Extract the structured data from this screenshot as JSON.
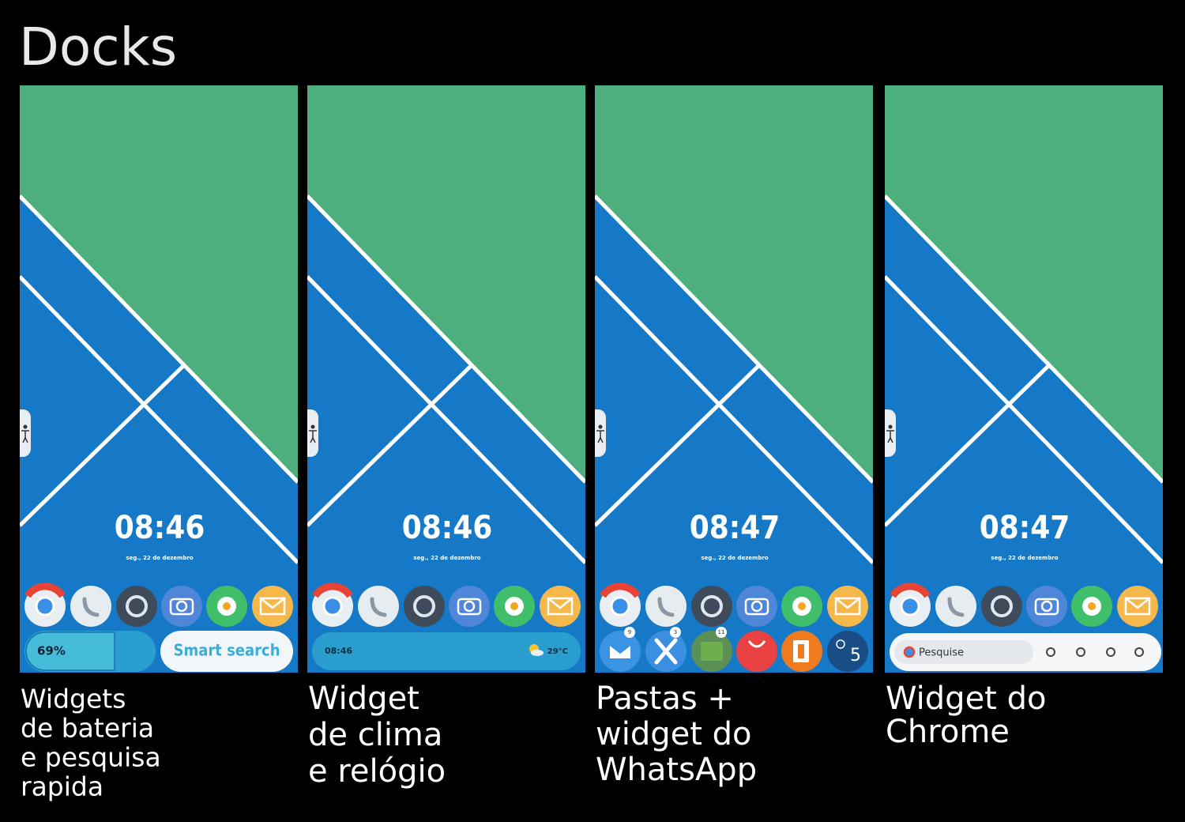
{
  "title": "Docks",
  "panels": [
    {
      "clock": "08:46",
      "date": "seg., 22 de dezembro",
      "widget": {
        "battery": "69%",
        "search": "Smart search"
      },
      "caption": [
        "Widgets",
        "de bateria",
        "e pesquisa",
        "rapida"
      ]
    },
    {
      "clock": "08:46",
      "date": "seg., 22 de dezembro",
      "widget": {
        "time": "08:46",
        "temperature": "29°C"
      },
      "caption": [
        "Widget",
        "de clima",
        "e relógio"
      ]
    },
    {
      "clock": "08:47",
      "date": "seg., 22 de dezembro",
      "widget": {
        "badges": [
          "9",
          "3",
          "11"
        ],
        "count": "5"
      },
      "caption": [
        "Pastas +",
        "widget do",
        "WhatsApp"
      ]
    },
    {
      "clock": "08:47",
      "date": "seg., 22 de dezembro",
      "widget": {
        "search": "Pesquise"
      },
      "caption": [
        "Widget do",
        "Chrome"
      ]
    }
  ]
}
